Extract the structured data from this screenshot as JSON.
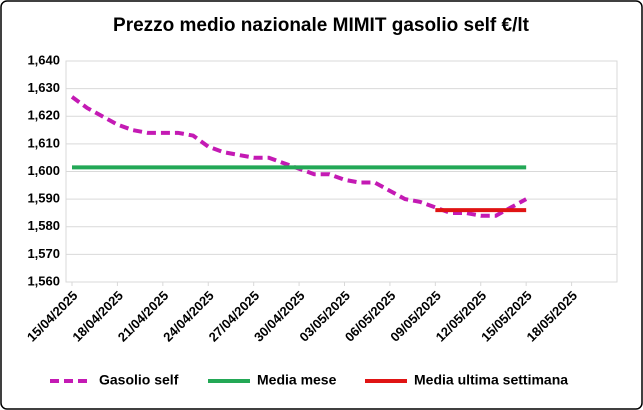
{
  "chart_data": {
    "type": "line",
    "title": "Prezzo medio nazionale MIMIT gasolio self €/lt",
    "xlim": [
      "15/04/2025",
      "21/05/2025"
    ],
    "xticks": [
      "15/04/2025",
      "18/04/2025",
      "21/04/2025",
      "24/04/2025",
      "27/04/2025",
      "30/04/2025",
      "03/05/2025",
      "06/05/2025",
      "09/05/2025",
      "12/05/2025",
      "15/05/2025",
      "18/05/2025"
    ],
    "ylim": [
      1.56,
      1.64
    ],
    "yticks": [
      {
        "value": 1.56,
        "label": "1,560"
      },
      {
        "value": 1.57,
        "label": "1,570"
      },
      {
        "value": 1.58,
        "label": "1,580"
      },
      {
        "value": 1.59,
        "label": "1,590"
      },
      {
        "value": 1.6,
        "label": "1,600"
      },
      {
        "value": 1.61,
        "label": "1,610"
      },
      {
        "value": 1.62,
        "label": "1,620"
      },
      {
        "value": 1.63,
        "label": "1,630"
      },
      {
        "value": 1.64,
        "label": "1,640"
      }
    ],
    "grid": true,
    "legend": "bottom",
    "series": [
      {
        "name": "Gasolio self",
        "color": "#c41ab4",
        "dashed": true,
        "x": [
          "15/04/2025",
          "16/04/2025",
          "17/04/2025",
          "18/04/2025",
          "19/04/2025",
          "20/04/2025",
          "21/04/2025",
          "22/04/2025",
          "23/04/2025",
          "24/04/2025",
          "25/04/2025",
          "26/04/2025",
          "27/04/2025",
          "28/04/2025",
          "29/04/2025",
          "30/04/2025",
          "01/05/2025",
          "02/05/2025",
          "03/05/2025",
          "04/05/2025",
          "05/05/2025",
          "06/05/2025",
          "07/05/2025",
          "08/05/2025",
          "09/05/2025",
          "10/05/2025",
          "11/05/2025",
          "12/05/2025",
          "13/05/2025",
          "14/05/2025",
          "15/05/2025"
        ],
        "values": [
          1.627,
          1.623,
          1.62,
          1.617,
          1.615,
          1.614,
          1.614,
          1.614,
          1.613,
          1.609,
          1.607,
          1.606,
          1.605,
          1.605,
          1.603,
          1.601,
          1.599,
          1.599,
          1.597,
          1.596,
          1.596,
          1.593,
          1.59,
          1.589,
          1.587,
          1.585,
          1.585,
          1.584,
          1.584,
          1.587,
          1.59
        ]
      },
      {
        "name": "Media mese",
        "color": "#23a856",
        "dashed": false,
        "x": [
          "15/04/2025",
          "15/05/2025"
        ],
        "values": [
          1.6015,
          1.6015
        ]
      },
      {
        "name": "Media ultima settimana",
        "color": "#e01414",
        "dashed": false,
        "x": [
          "09/05/2025",
          "15/05/2025"
        ],
        "values": [
          1.586,
          1.586
        ]
      }
    ]
  }
}
